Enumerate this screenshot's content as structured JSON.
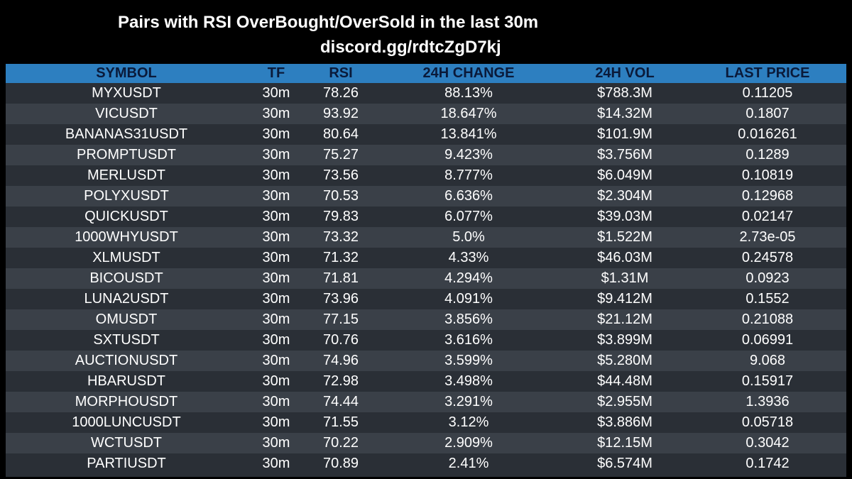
{
  "header": {
    "title": "Pairs with RSI OverBought/OverSold in the last 30m",
    "subtitle": "discord.gg/rdtcZgD7kj"
  },
  "table": {
    "columns": {
      "symbol": "SYMBOL",
      "tf": "TF",
      "rsi": "RSI",
      "change": "24H CHANGE",
      "vol": "24H VOL",
      "price": "LAST PRICE"
    },
    "rows": [
      {
        "symbol": "MYXUSDT",
        "tf": "30m",
        "rsi": "78.26",
        "change": "88.13%",
        "vol": "$788.3M",
        "price": "0.11205"
      },
      {
        "symbol": "VICUSDT",
        "tf": "30m",
        "rsi": "93.92",
        "change": "18.647%",
        "vol": "$14.32M",
        "price": "0.1807"
      },
      {
        "symbol": "BANANAS31USDT",
        "tf": "30m",
        "rsi": "80.64",
        "change": "13.841%",
        "vol": "$101.9M",
        "price": "0.016261"
      },
      {
        "symbol": "PROMPTUSDT",
        "tf": "30m",
        "rsi": "75.27",
        "change": "9.423%",
        "vol": "$3.756M",
        "price": "0.1289"
      },
      {
        "symbol": "MERLUSDT",
        "tf": "30m",
        "rsi": "73.56",
        "change": "8.777%",
        "vol": "$6.049M",
        "price": "0.10819"
      },
      {
        "symbol": "POLYXUSDT",
        "tf": "30m",
        "rsi": "70.53",
        "change": "6.636%",
        "vol": "$2.304M",
        "price": "0.12968"
      },
      {
        "symbol": "QUICKUSDT",
        "tf": "30m",
        "rsi": "79.83",
        "change": "6.077%",
        "vol": "$39.03M",
        "price": "0.02147"
      },
      {
        "symbol": "1000WHYUSDT",
        "tf": "30m",
        "rsi": "73.32",
        "change": "5.0%",
        "vol": "$1.522M",
        "price": "2.73e-05"
      },
      {
        "symbol": "XLMUSDT",
        "tf": "30m",
        "rsi": "71.32",
        "change": "4.33%",
        "vol": "$46.03M",
        "price": "0.24578"
      },
      {
        "symbol": "BICOUSDT",
        "tf": "30m",
        "rsi": "71.81",
        "change": "4.294%",
        "vol": "$1.31M",
        "price": "0.0923"
      },
      {
        "symbol": "LUNA2USDT",
        "tf": "30m",
        "rsi": "73.96",
        "change": "4.091%",
        "vol": "$9.412M",
        "price": "0.1552"
      },
      {
        "symbol": "OMUSDT",
        "tf": "30m",
        "rsi": "77.15",
        "change": "3.856%",
        "vol": "$21.12M",
        "price": "0.21088"
      },
      {
        "symbol": "SXTUSDT",
        "tf": "30m",
        "rsi": "70.76",
        "change": "3.616%",
        "vol": "$3.899M",
        "price": "0.06991"
      },
      {
        "symbol": "AUCTIONUSDT",
        "tf": "30m",
        "rsi": "74.96",
        "change": "3.599%",
        "vol": "$5.280M",
        "price": "9.068"
      },
      {
        "symbol": "HBARUSDT",
        "tf": "30m",
        "rsi": "72.98",
        "change": "3.498%",
        "vol": "$44.48M",
        "price": "0.15917"
      },
      {
        "symbol": "MORPHOUSDT",
        "tf": "30m",
        "rsi": "74.44",
        "change": "3.291%",
        "vol": "$2.955M",
        "price": "1.3936"
      },
      {
        "symbol": "1000LUNCUSDT",
        "tf": "30m",
        "rsi": "71.55",
        "change": "3.12%",
        "vol": "$3.886M",
        "price": "0.05718"
      },
      {
        "symbol": "WCTUSDT",
        "tf": "30m",
        "rsi": "70.22",
        "change": "2.909%",
        "vol": "$12.15M",
        "price": "0.3042"
      },
      {
        "symbol": "PARTIUSDT",
        "tf": "30m",
        "rsi": "70.89",
        "change": "2.41%",
        "vol": "$6.574M",
        "price": "0.1742"
      }
    ]
  },
  "colors": {
    "background": "#000000",
    "header_bar": "#2d7fc0",
    "header_text": "#0a1a3a",
    "row_dark": "#2a2f36",
    "row_light": "#3a4048",
    "text": "#ffffff"
  }
}
